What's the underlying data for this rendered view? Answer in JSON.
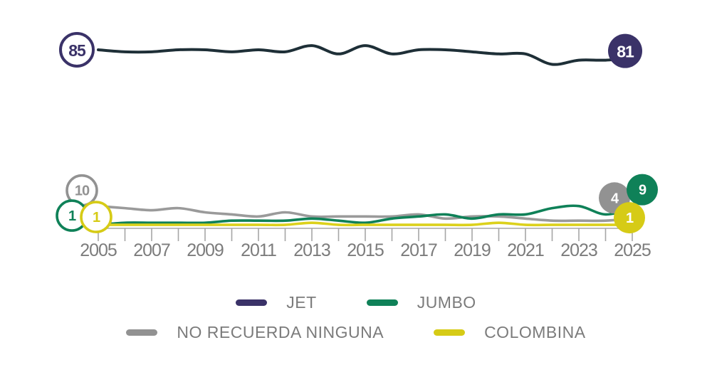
{
  "chart_data": {
    "type": "line",
    "title": "",
    "x": [
      2005,
      2006,
      2007,
      2008,
      2009,
      2010,
      2011,
      2012,
      2013,
      2014,
      2015,
      2016,
      2017,
      2018,
      2019,
      2020,
      2021,
      2022,
      2023,
      2024,
      2025
    ],
    "x_tick_labels": [
      "2005",
      "2007",
      "2009",
      "2011",
      "2013",
      "2015",
      "2017",
      "2019",
      "2021",
      "2023",
      "2025"
    ],
    "ylim": [
      0,
      100
    ],
    "grid": false,
    "legend_position": "bottom",
    "series": [
      {
        "name": "JET",
        "color": "#3a3268",
        "line_color": "#1e2f37",
        "values": [
          85,
          84,
          84,
          85,
          85,
          84,
          85,
          84,
          87,
          83,
          87,
          83,
          85,
          85,
          84,
          83,
          83,
          78,
          80,
          80,
          81
        ],
        "start_label": "85",
        "end_label": "81"
      },
      {
        "name": "JUMBO",
        "color": "#0f8158",
        "line_color": "#0f8158",
        "values": [
          1,
          2,
          2,
          2,
          2,
          3,
          3,
          3,
          4,
          3,
          2,
          4,
          5,
          6,
          4,
          6,
          6,
          9,
          10,
          6,
          9
        ],
        "start_label": "1",
        "end_label": "9"
      },
      {
        "name": "NO RECUERDA NINGUNA",
        "color": "#929292",
        "line_color": "#9a9a9a",
        "values": [
          10,
          9,
          8,
          9,
          7,
          6,
          5,
          7,
          5,
          5,
          5,
          5,
          6,
          4,
          5,
          5,
          4,
          3,
          3,
          3,
          4
        ],
        "start_label": "10",
        "end_label": "4"
      },
      {
        "name": "COLOMBINA",
        "color": "#d6cb16",
        "line_color": "#dcd11c",
        "values": [
          1,
          1,
          1,
          1,
          1,
          1,
          1,
          1,
          2,
          1,
          1,
          1,
          1,
          1,
          1,
          2,
          1,
          1,
          1,
          1,
          1
        ],
        "start_label": "1",
        "end_label": "1"
      }
    ]
  },
  "legend": {
    "items": [
      {
        "label": "JET",
        "color": "#3a3268"
      },
      {
        "label": "JUMBO",
        "color": "#0f8158"
      },
      {
        "label": "NO RECUERDA NINGUNA",
        "color": "#929292"
      },
      {
        "label": "COLOMBINA",
        "color": "#d6cb16"
      }
    ]
  }
}
